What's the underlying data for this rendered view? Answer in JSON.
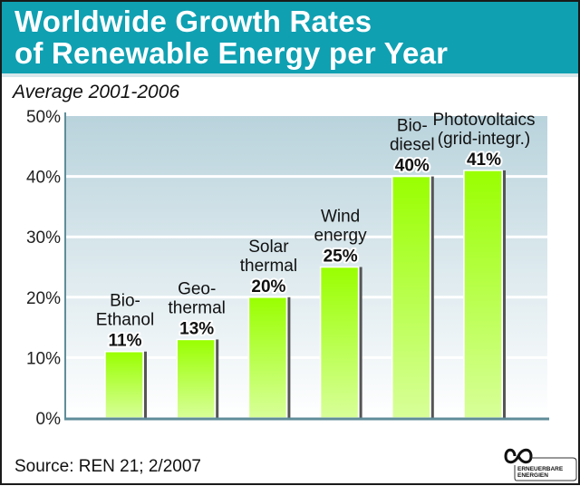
{
  "header": {
    "title_line1": "Worldwide Growth Rates",
    "title_line2": "of Renewable Energy per Year",
    "subtitle": "Average 2001-2006"
  },
  "footer": {
    "source": "Source: REN 21; 2/2007",
    "logo_text_line1": "ERNEUERBARE",
    "logo_text_line2": "ENERGIEN",
    "logo_icon": "infinity-icon"
  },
  "colors": {
    "header_bg": "#0fa0b2",
    "bar_top": "#99ff00",
    "bar_bottom": "#d8ff99",
    "bar_shadow": "#555555",
    "plot_bg_top": "#b9d3dc",
    "plot_bg_bottom": "#ffffff",
    "axis": "#5f8d99"
  },
  "chart_data": {
    "type": "bar",
    "title": "Worldwide Growth Rates of Renewable Energy per Year",
    "subtitle": "Average 2001-2006",
    "categories": [
      "Bio-Ethanol",
      "Geothermal",
      "Solar thermal",
      "Wind energy",
      "Biodiesel",
      "Photovoltaics (grid-integr.)"
    ],
    "category_label_lines": [
      [
        "Bio-",
        "Ethanol"
      ],
      [
        "Geo-",
        "thermal"
      ],
      [
        "Solar",
        "thermal"
      ],
      [
        "Wind",
        "energy"
      ],
      [
        "Bio-",
        "diesel"
      ],
      [
        "Photovoltaics",
        "(grid-integr.)"
      ]
    ],
    "values": [
      11,
      13,
      20,
      25,
      40,
      41
    ],
    "value_labels": [
      "11%",
      "13%",
      "20%",
      "25%",
      "40%",
      "41%"
    ],
    "xlabel": "",
    "ylabel": "",
    "ylim": [
      0,
      50
    ],
    "yticks": [
      0,
      10,
      20,
      30,
      40,
      50
    ],
    "ytick_labels": [
      "0%",
      "10%",
      "20%",
      "30%",
      "40%",
      "50%"
    ],
    "grid": true,
    "legend": "none",
    "source": "REN 21; 2/2007"
  }
}
